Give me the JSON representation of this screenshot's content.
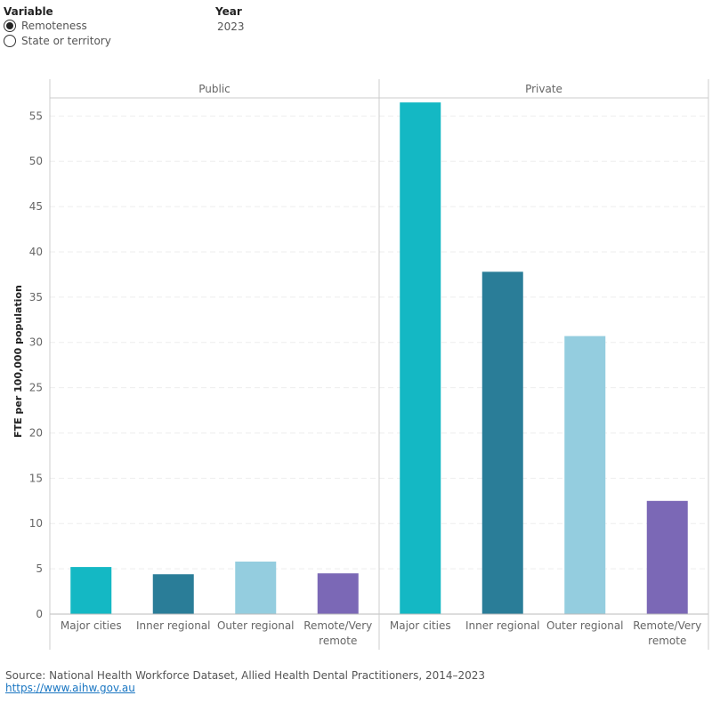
{
  "controls": {
    "variable_title": "Variable",
    "options": [
      {
        "label": "Remoteness",
        "checked": true
      },
      {
        "label": "State or territory",
        "checked": false
      }
    ],
    "year_title": "Year",
    "year_value": "2023"
  },
  "chart_data": {
    "type": "bar",
    "ylabel": "FTE per 100,000 population",
    "ylim": [
      0,
      57
    ],
    "yticks": [
      0,
      5,
      10,
      15,
      20,
      25,
      30,
      35,
      40,
      45,
      50,
      55
    ],
    "grid": true,
    "categories": [
      "Major cities",
      "Inner regional",
      "Outer regional",
      "Remote/Very remote"
    ],
    "category_lines": [
      [
        "Major cities"
      ],
      [
        "Inner regional"
      ],
      [
        "Outer regional"
      ],
      [
        "Remote/Very",
        "remote"
      ]
    ],
    "colors": [
      "#14b8c4",
      "#2a7d98",
      "#94cddf",
      "#7b68b6"
    ],
    "panels": [
      {
        "name": "Public",
        "values": [
          5.2,
          4.4,
          5.8,
          4.5
        ]
      },
      {
        "name": "Private",
        "values": [
          56.5,
          37.8,
          30.7,
          12.5
        ]
      }
    ]
  },
  "footer": {
    "source": "Source: National Health Workforce Dataset, Allied Health Dental Practitioners, 2014–2023",
    "link": "https://www.aihw.gov.au"
  }
}
